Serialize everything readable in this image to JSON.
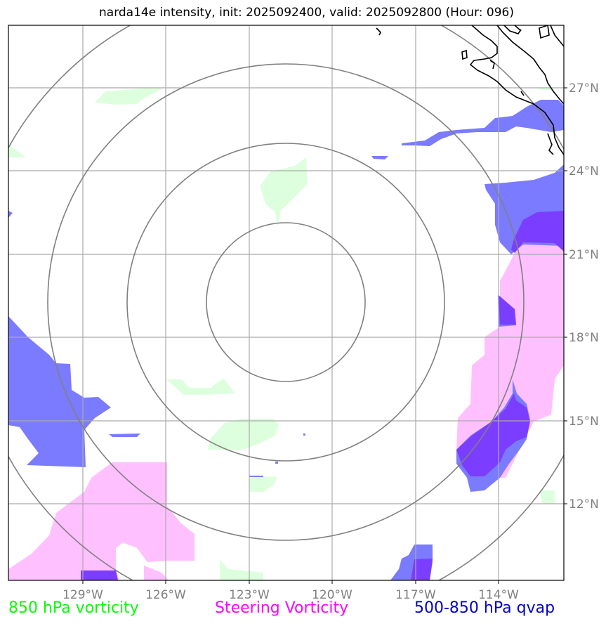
{
  "title": "narda14e intensity, init: 2025092400, valid: 2025092800 (Hour: 096)",
  "map": {
    "longitude_labels": [
      "129°W",
      "126°W",
      "123°W",
      "120°W",
      "117°W",
      "114°W"
    ],
    "latitude_labels": [
      "27°N",
      "24°N",
      "21°N",
      "18°N",
      "15°N",
      "12°N"
    ],
    "grid_color": "#aaaaaa",
    "range_ring_color": "#808080",
    "coastline_color": "#000000"
  },
  "legend": [
    {
      "label": "850 hPa vorticity",
      "color": "#00ff00",
      "fill": "#ddffdd"
    },
    {
      "label": "Steering Vorticity",
      "color": "#ff00ff",
      "fill": "#ffc0ff"
    },
    {
      "label": "500-850 hPa qvap",
      "color": "#0000cc",
      "fill": "#7b7bff"
    }
  ],
  "overlap_color": "#7b3dff"
}
